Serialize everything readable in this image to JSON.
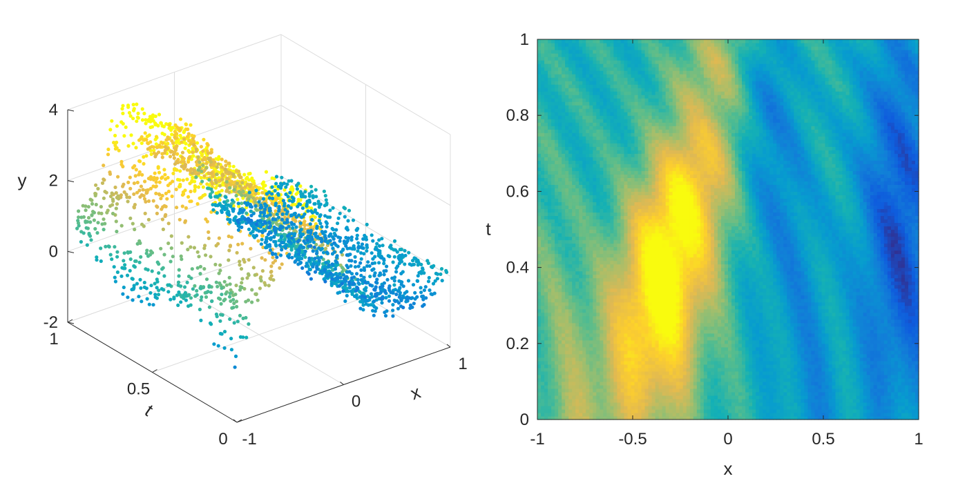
{
  "chart_data": [
    {
      "type": "scatter3d",
      "xlabel": "x",
      "ylabel": "t",
      "zlabel": "y",
      "xlim": [
        -1,
        1
      ],
      "ylim": [
        0,
        1
      ],
      "zlim": [
        -2,
        4
      ],
      "xticks": [
        "-1",
        "0",
        "1"
      ],
      "yticks": [
        "0",
        "0.5",
        "1"
      ],
      "zticks": [
        "-2",
        "0",
        "2",
        "4"
      ],
      "grid": true,
      "colormap": "parula",
      "surface_samples": [
        {
          "x": -1.0,
          "t": 0.0,
          "y": 0.2
        },
        {
          "x": -1.0,
          "t": 0.5,
          "y": 1.2
        },
        {
          "x": -1.0,
          "t": 1.0,
          "y": 0.3
        },
        {
          "x": -0.5,
          "t": 0.0,
          "y": 1.2
        },
        {
          "x": -0.5,
          "t": 0.5,
          "y": 2.6
        },
        {
          "x": -0.5,
          "t": 1.0,
          "y": 1.4
        },
        {
          "x": 0.0,
          "t": 0.0,
          "y": 0.6
        },
        {
          "x": 0.0,
          "t": 0.5,
          "y": 1.6
        },
        {
          "x": 0.0,
          "t": 1.0,
          "y": 2.4
        },
        {
          "x": 0.5,
          "t": 0.0,
          "y": -0.4
        },
        {
          "x": 0.5,
          "t": 0.5,
          "y": -0.9
        },
        {
          "x": 0.5,
          "t": 1.0,
          "y": 0.2
        },
        {
          "x": 1.0,
          "t": 0.0,
          "y": -0.6
        },
        {
          "x": 1.0,
          "t": 0.5,
          "y": -1.0
        },
        {
          "x": 1.0,
          "t": 1.0,
          "y": -0.7
        }
      ]
    },
    {
      "type": "heatmap",
      "xlabel": "x",
      "ylabel": "t",
      "xlim": [
        -1,
        1
      ],
      "ylim": [
        0,
        1
      ],
      "xticks": [
        "-1",
        "-0.5",
        "0",
        "0.5",
        "1"
      ],
      "yticks": [
        "0",
        "0.2",
        "0.4",
        "0.6",
        "0.8",
        "1"
      ],
      "colormap": "parula",
      "clim": [
        -2,
        3
      ],
      "grid": false
    }
  ]
}
